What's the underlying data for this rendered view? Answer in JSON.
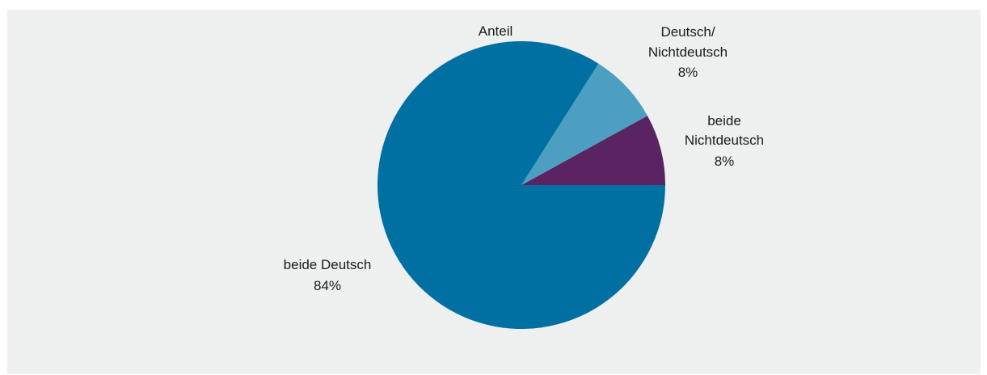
{
  "chart_data": {
    "type": "pie",
    "title": "Anteil",
    "slices": [
      {
        "name": "beide Deutsch",
        "value": 84,
        "label": "84%",
        "color": "#0070a3",
        "label_lines": [
          "beide Deutsch"
        ]
      },
      {
        "name": "Deutsch/ Nichtdeutsch",
        "value": 8,
        "label": "8%",
        "color": "#4d9fc1",
        "label_lines": [
          "Deutsch/",
          "Nichtdeutsch"
        ]
      },
      {
        "name": "beide Nichtdeutsch",
        "value": 8,
        "label": "8%",
        "color": "#5a2362",
        "label_lines": [
          "beide",
          "Nichtdeutsch"
        ]
      }
    ],
    "background": "#eef0f0"
  }
}
